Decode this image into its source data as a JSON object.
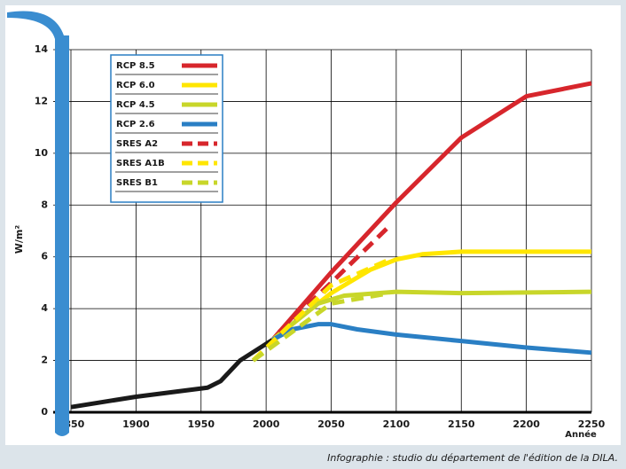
{
  "chart_data": {
    "type": "line",
    "x_label": "Année",
    "y_label": "W/m²",
    "credit": "Infographie : studio du département de l'édition de la DILA.",
    "xlim": [
      1850,
      2250
    ],
    "xticks": [
      1850,
      1900,
      1950,
      2000,
      2050,
      2100,
      2150,
      2200,
      2250
    ],
    "ylim": [
      0,
      14
    ],
    "yticks": [
      0,
      2,
      4,
      6,
      8,
      10,
      12,
      14
    ],
    "grid": true,
    "series": [
      {
        "color": "#1a1a1a",
        "dash": false,
        "x": [
          1850,
          1900,
          1955,
          1965,
          1980,
          2005
        ],
        "y": [
          0.2,
          0.6,
          0.95,
          1.2,
          2.0,
          2.8
        ]
      },
      {
        "name": "RCP 8.5",
        "color": "#d7262c",
        "dash": false,
        "x": [
          2005,
          2050,
          2100,
          2150,
          2200,
          2250
        ],
        "y": [
          2.8,
          5.4,
          8.1,
          10.6,
          12.2,
          12.7
        ]
      },
      {
        "name": "RCP 6.0",
        "color": "#ffe600",
        "dash": false,
        "x": [
          2005,
          2050,
          2080,
          2100,
          2120,
          2150,
          2250
        ],
        "y": [
          2.8,
          4.6,
          5.5,
          5.9,
          6.1,
          6.2,
          6.2
        ]
      },
      {
        "name": "RCP 4.5",
        "color": "#c8d62a",
        "dash": false,
        "x": [
          2005,
          2040,
          2060,
          2100,
          2150,
          2250
        ],
        "y": [
          2.8,
          4.2,
          4.5,
          4.65,
          4.6,
          4.65
        ]
      },
      {
        "name": "RCP 2.6",
        "color": "#2a7fc4",
        "dash": false,
        "x": [
          2005,
          2020,
          2040,
          2050,
          2070,
          2100,
          2150,
          2200,
          2250
        ],
        "y": [
          2.8,
          3.2,
          3.4,
          3.4,
          3.2,
          3.0,
          2.75,
          2.5,
          2.3
        ]
      },
      {
        "name": "SRES A2",
        "color": "#d7262c",
        "dash": true,
        "x": [
          2010,
          2050,
          2095
        ],
        "y": [
          3.1,
          5.0,
          7.2
        ]
      },
      {
        "name": "SRES A1B",
        "color": "#ffe600",
        "dash": true,
        "x": [
          1990,
          2050,
          2095
        ],
        "y": [
          2.0,
          4.9,
          5.9
        ]
      },
      {
        "name": "SRES B1",
        "color": "#c8d62a",
        "dash": true,
        "x": [
          1990,
          2050,
          2095
        ],
        "y": [
          2.0,
          4.2,
          4.6
        ]
      }
    ]
  }
}
